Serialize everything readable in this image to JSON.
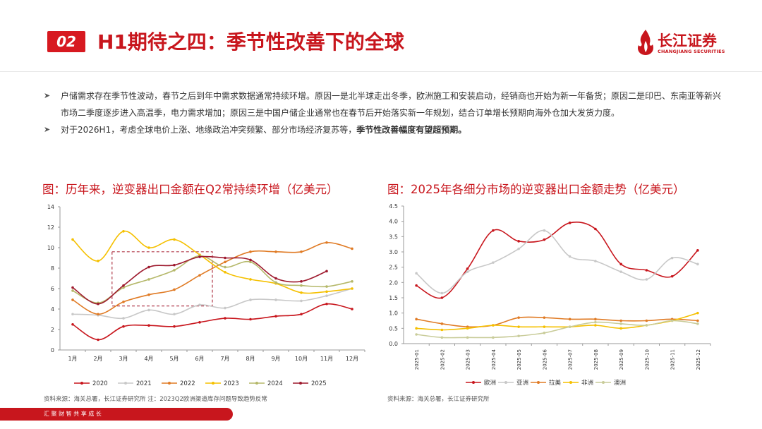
{
  "header": {
    "section_number": "02",
    "title": "H1期待之四：季节性改善下的全球",
    "logo_cn": "长江证券",
    "logo_en": "CHANGJIANG SECURITIES"
  },
  "bullets": [
    {
      "text": "户储需求存在季节性波动，春节之后到年中需求数据通常持续环增。原因一是北半球走出冬季，欧洲施工和安装启动，经销商也开始为新一年备货；原因二是印巴、东南亚等新兴市场二季度逐步进入高温季，电力需求增加；原因三是中国户储企业通常也在春节后开始落实新一年规划，结合订单增长预期向海外仓加大发货力度。",
      "bold": ""
    },
    {
      "text": "对于2026H1，考虑全球电价上涨、地缘政治冲突频繁、部分市场经济复苏等，",
      "bold": "季节性改善幅度有望超预期。"
    }
  ],
  "left_chart_title": "图：历年来，逆变器出口金额在Q2常持续环增（亿美元）",
  "right_chart_title": "图：2025年各细分市场的逆变器出口金额走势（亿美元）",
  "left_source": "资料来源：海关总署，长江证券研究所   注：2023Q2欧洲渠道库存问题导致趋势反常",
  "right_source": "资料来源：海关总署，长江证券研究所",
  "footer": "汇 聚 财 智     共 享 成 长",
  "chart_data": [
    {
      "type": "line",
      "title": "图：历年来，逆变器出口金额在Q2常持续环增（亿美元）",
      "categories": [
        "1月",
        "2月",
        "3月",
        "4月",
        "5月",
        "6月",
        "7月",
        "8月",
        "9月",
        "10月",
        "11月",
        "12月"
      ],
      "ylim": [
        0,
        14
      ],
      "yticks": [
        0,
        2,
        4,
        6,
        8,
        10,
        12,
        14
      ],
      "legend": "bottom",
      "grid": false,
      "annotation": "dashed box around 3月–6月",
      "series": [
        {
          "name": "2020",
          "color": "#c8161d",
          "values": [
            2.5,
            1.0,
            2.3,
            2.4,
            2.3,
            2.7,
            3.1,
            3.0,
            3.3,
            3.5,
            4.5,
            4.0
          ]
        },
        {
          "name": "2021",
          "color": "#c8c8c8",
          "values": [
            3.5,
            3.4,
            3.1,
            3.9,
            3.5,
            4.4,
            4.1,
            4.9,
            4.9,
            4.8,
            5.3,
            6.0
          ]
        },
        {
          "name": "2022",
          "color": "#e07b25",
          "values": [
            4.9,
            3.5,
            4.7,
            5.4,
            5.9,
            7.3,
            8.6,
            9.6,
            9.6,
            9.6,
            10.5,
            9.9
          ]
        },
        {
          "name": "2023",
          "color": "#f5c000",
          "values": [
            10.8,
            8.7,
            11.6,
            10.0,
            10.8,
            9.3,
            7.6,
            6.9,
            6.5,
            5.6,
            5.7,
            6.0
          ]
        },
        {
          "name": "2024",
          "color": "#b5b86a",
          "values": [
            5.8,
            4.6,
            6.1,
            6.9,
            7.8,
            9.2,
            8.1,
            8.6,
            6.6,
            6.3,
            6.2,
            6.7
          ]
        },
        {
          "name": "2025",
          "color": "#9e1a2e",
          "values": [
            6.1,
            4.5,
            6.3,
            8.1,
            8.3,
            9.1,
            9.0,
            8.8,
            7.0,
            6.7,
            7.7,
            null
          ]
        }
      ]
    },
    {
      "type": "line",
      "title": "图：2025年各细分市场的逆变器出口金额走势（亿美元）",
      "categories": [
        "2025-01",
        "2025-02",
        "2025-03",
        "2025-04",
        "2025-05",
        "2025-06",
        "2025-07",
        "2025-08",
        "2025-09",
        "2025-10",
        "2025-11",
        "2025-12"
      ],
      "ylim": [
        0,
        4.5
      ],
      "yticks": [
        0.0,
        0.5,
        1.0,
        1.5,
        2.0,
        2.5,
        3.0,
        3.5,
        4.0,
        4.5
      ],
      "legend": "bottom",
      "grid": false,
      "series": [
        {
          "name": "欧洲",
          "color": "#c8161d",
          "values": [
            1.9,
            1.5,
            2.45,
            3.7,
            3.35,
            3.4,
            3.95,
            3.75,
            2.6,
            2.4,
            2.2,
            3.05
          ]
        },
        {
          "name": "亚洲",
          "color": "#c8c8c8",
          "values": [
            2.3,
            1.65,
            2.35,
            2.65,
            3.1,
            3.7,
            2.85,
            2.7,
            2.35,
            2.1,
            2.8,
            2.6
          ]
        },
        {
          "name": "拉美",
          "color": "#e07b25",
          "values": [
            0.8,
            0.65,
            0.55,
            0.6,
            0.85,
            0.85,
            0.8,
            0.8,
            0.75,
            0.75,
            0.8,
            0.75
          ]
        },
        {
          "name": "非洲",
          "color": "#f5c000",
          "values": [
            0.5,
            0.45,
            0.5,
            0.6,
            0.55,
            0.55,
            0.55,
            0.6,
            0.5,
            0.6,
            0.75,
            1.0
          ]
        },
        {
          "name": "澳洲",
          "color": "#c9cc9a",
          "values": [
            0.3,
            0.2,
            0.2,
            0.2,
            0.25,
            0.35,
            0.55,
            0.7,
            0.65,
            0.6,
            0.75,
            0.65
          ]
        }
      ]
    }
  ]
}
